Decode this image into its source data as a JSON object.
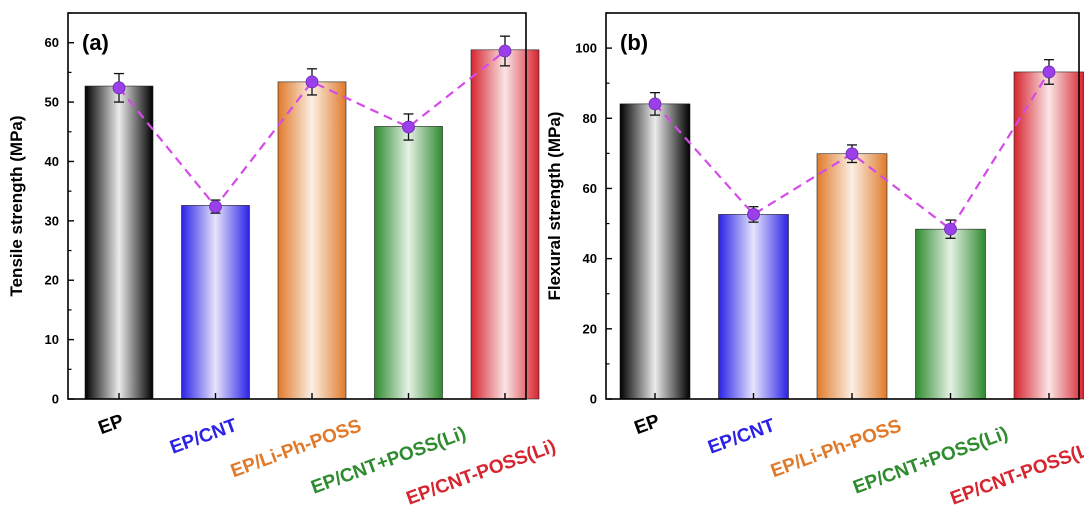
{
  "chart_data": [
    {
      "type": "bar",
      "panel_label": "(a)",
      "title": "",
      "xlabel": "",
      "ylabel": "Tensile strength (MPa)",
      "ylim": [
        0,
        65
      ],
      "yticks": [
        0,
        10,
        20,
        30,
        40,
        50,
        60
      ],
      "grid": false,
      "categories": [
        "EP",
        "EP/CNT",
        "EP/Li-Ph-POSS",
        "EP/CNT+POSS(Li)",
        "EP/CNT-POSS(Li)"
      ],
      "category_colors": [
        "#000000",
        "#2b22e6",
        "#e07a2a",
        "#2e8b2e",
        "#d6252f"
      ],
      "values": [
        52.7,
        32.6,
        53.4,
        45.9,
        58.8
      ],
      "points": [
        52.4,
        32.4,
        53.4,
        45.8,
        58.6
      ],
      "errors": [
        2.4,
        1.1,
        2.2,
        2.2,
        2.5
      ],
      "point_color": "#9b3fea",
      "line_color": "#d44be8"
    },
    {
      "type": "bar",
      "panel_label": "(b)",
      "title": "",
      "xlabel": "",
      "ylabel": "Flexural strength (MPa)",
      "ylim": [
        0,
        110
      ],
      "yticks": [
        0,
        20,
        40,
        60,
        80,
        100
      ],
      "grid": false,
      "categories": [
        "EP",
        "EP/CNT",
        "EP/Li-Ph-POSS",
        "EP/CNT+POSS(Li)",
        "EP/CNT-POSS(Li)"
      ],
      "category_colors": [
        "#000000",
        "#2b22e6",
        "#e07a2a",
        "#2e8b2e",
        "#d6252f"
      ],
      "values": [
        84.1,
        52.6,
        69.9,
        48.4,
        93.2
      ],
      "points": [
        84.1,
        52.6,
        69.9,
        48.4,
        93.2
      ],
      "errors": [
        3.2,
        2.2,
        2.5,
        2.6,
        3.5
      ],
      "point_color": "#9b3fea",
      "line_color": "#d44be8"
    }
  ]
}
